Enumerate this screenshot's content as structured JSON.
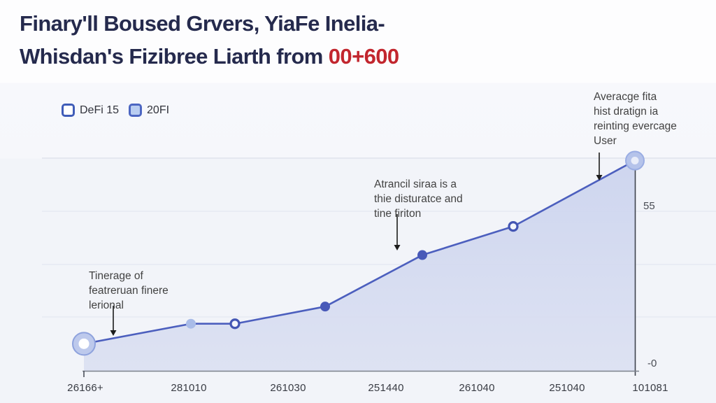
{
  "title": {
    "line1": "Finary'll Boused Grvers, YiaFe Inelia-",
    "line2_prefix": "Whisdan's Fizibree Liarth from ",
    "line2_highlight": "00+600"
  },
  "legend": {
    "items": [
      {
        "label": "DeFi 15",
        "style": "solid"
      },
      {
        "label": "20FI",
        "style": "light"
      }
    ]
  },
  "annotations": [
    {
      "lines": [
        "Tinerage of",
        "featreruan finere",
        "lerional"
      ]
    },
    {
      "lines": [
        "Atrancil siraa is a",
        "thie disturatce and",
        "tine firiton"
      ]
    },
    {
      "lines": [
        "Averacge fita",
        "hist dratign ia",
        "reinting evercage",
        "User"
      ]
    }
  ],
  "axes": {
    "x_labels": [
      "26166+",
      "281010",
      "261030",
      "251440",
      "261040",
      "251040",
      "101081"
    ],
    "y_labels": [
      {
        "text": "55"
      },
      {
        "text": "-0"
      }
    ]
  },
  "colors": {
    "title_navy": "#252a4d",
    "highlight_red": "#c2262e",
    "line_blue": "#4c5fbe",
    "area_fill": "#d3daf0",
    "marker_dark": "#4859b8",
    "marker_light": "#a9bce8",
    "axis_gray": "#565b66"
  },
  "chart_data": {
    "type": "area",
    "categories": [
      "26166+",
      "281010",
      "261030",
      "251440",
      "261040",
      "251040",
      "101081"
    ],
    "values": [
      7,
      14,
      14,
      20,
      38,
      48,
      71
    ],
    "markers": [
      "ring-start",
      "dot-light",
      "dot-open",
      "dot-dark",
      "dot-dark",
      "dot-open",
      "ring-end"
    ],
    "title": "Finary'll Boused Grvers, YiaFe Inelia- Whisdan's Fizibree Liarth from 00+600",
    "xlabel": "",
    "ylabel": "",
    "ylim": [
      0,
      75
    ],
    "y_tick_labels": [
      "55",
      "-0"
    ],
    "legend_entries": [
      "DeFi 15",
      "20FI"
    ],
    "legend_position": "top-left",
    "grid": true,
    "annotation_texts": [
      "Tinerage of featreruan finere lerional",
      "Atrancil siraa is a thie disturatce and tine firiton",
      "Averacge fita hist dratign ia reinting evercage User"
    ]
  }
}
